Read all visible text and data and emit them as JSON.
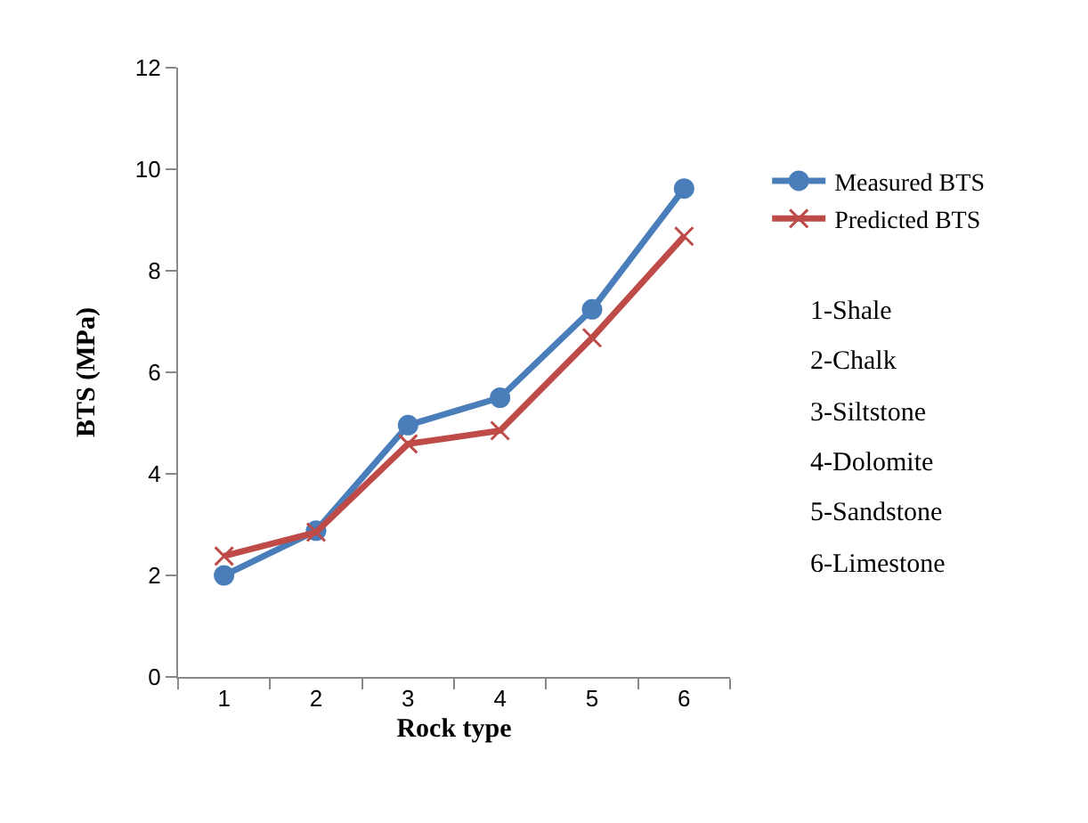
{
  "chart_data": {
    "type": "line",
    "xlabel": "Rock type",
    "ylabel": "BTS (MPa)",
    "categories": [
      "1",
      "2",
      "3",
      "4",
      "5",
      "6"
    ],
    "series": [
      {
        "name": "Measured BTS",
        "color": "#4a7ebb",
        "marker": "circle",
        "values": [
          2.0,
          2.88,
          4.96,
          5.5,
          7.24,
          9.62
        ]
      },
      {
        "name": "Predicted BTS",
        "color": "#be4b48",
        "marker": "cross",
        "values": [
          2.38,
          2.85,
          4.59,
          4.85,
          6.68,
          8.68
        ]
      }
    ],
    "ylim": [
      0,
      12
    ],
    "yticks": [
      0,
      2,
      4,
      6,
      8,
      10,
      12
    ],
    "grid": false,
    "legend": "right",
    "line_style": "solid",
    "annotations": [
      "1-Shale",
      "2-Chalk",
      "3-Siltstone",
      "4-Dolomite",
      "5-Sandstone",
      "6-Limestone"
    ]
  }
}
